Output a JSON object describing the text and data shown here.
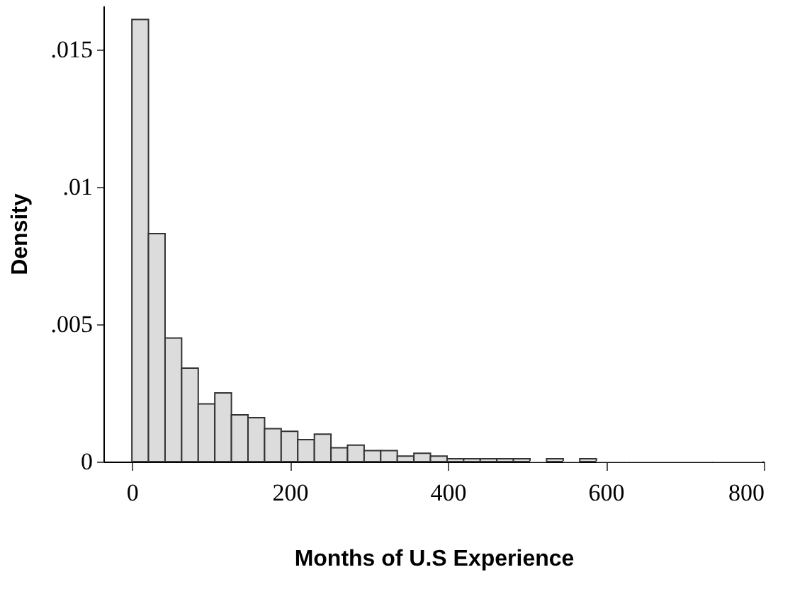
{
  "chart_data": {
    "type": "histogram",
    "xlabel": "Months of U.S Experience",
    "ylabel": "Density",
    "bins": [
      0,
      21,
      42,
      63,
      84,
      105,
      126,
      147,
      168,
      189,
      210,
      231,
      252,
      273,
      294,
      315,
      336,
      357,
      378,
      399,
      420,
      441,
      462,
      483,
      504,
      525,
      546,
      567,
      588,
      609,
      630,
      651,
      672,
      693,
      714,
      735,
      756,
      777,
      798
    ],
    "values": [
      0.0161,
      0.0083,
      0.0045,
      0.0034,
      0.0021,
      0.0025,
      0.0017,
      0.0016,
      0.0012,
      0.0011,
      0.0008,
      0.001,
      0.0005,
      0.0006,
      0.0004,
      0.0004,
      0.0002,
      0.0003,
      0.0002,
      0.0001,
      0.0001,
      0.0001,
      0.0001,
      0.0001,
      0,
      0.0001,
      0,
      0.0001,
      0,
      0,
      0,
      0,
      0,
      0,
      0,
      0,
      0,
      0
    ],
    "color": "#dcdcdc",
    "xlim": [
      -36,
      800
    ],
    "xticks": [
      0,
      200,
      400,
      600,
      800
    ],
    "ylim": [
      0,
      0.0166
    ],
    "yticks": [
      {
        "value": 0,
        "label": "0"
      },
      {
        "value": 0.005,
        "label": ".005"
      },
      {
        "value": 0.01,
        "label": ".01"
      },
      {
        "value": 0.015,
        "label": ".015"
      }
    ],
    "grid": false
  }
}
